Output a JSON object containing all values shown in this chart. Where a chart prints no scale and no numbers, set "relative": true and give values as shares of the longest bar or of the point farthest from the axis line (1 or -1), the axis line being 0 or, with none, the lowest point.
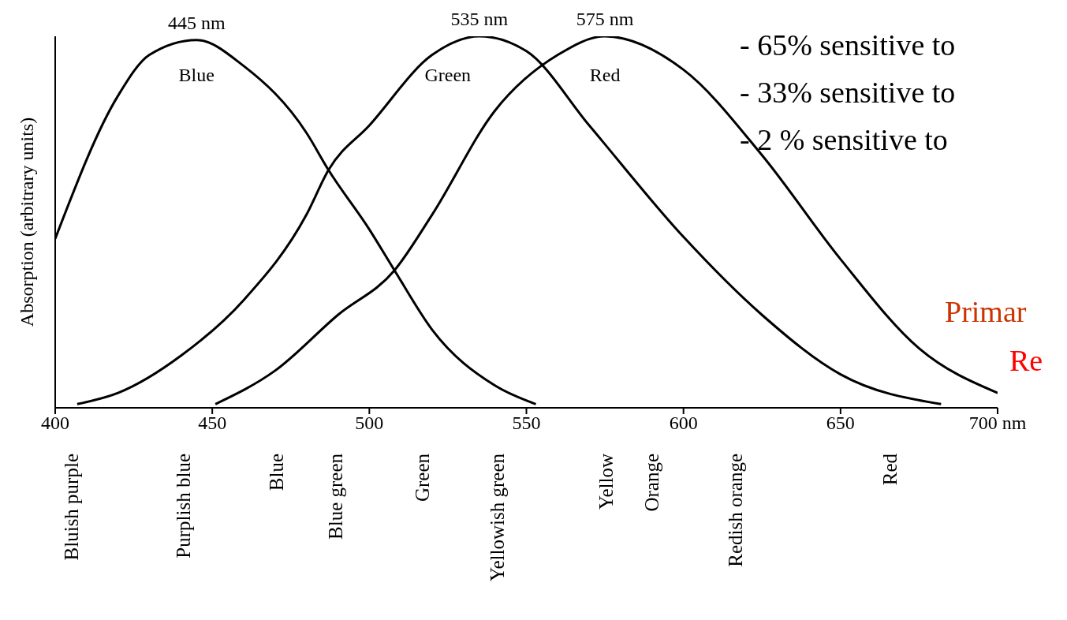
{
  "chart_data": {
    "type": "line",
    "relative": true,
    "ylabel": "Absorption (arbitrary units)",
    "xlim": [
      400,
      700
    ],
    "xticks": [
      400,
      450,
      500,
      550,
      600,
      650,
      {
        "value": 700,
        "label": "700 nm"
      }
    ],
    "series": [
      {
        "name": "Blue",
        "color": "#000000",
        "x": [
          400,
          420,
          430,
          445,
          460,
          480,
          487,
          500,
          508,
          520,
          540,
          553
        ],
        "values": [
          0.455,
          0.84,
          0.95,
          0.99,
          0.92,
          0.74,
          0.64,
          0.48,
          0.37,
          0.21,
          0.06,
          0.01
        ]
      },
      {
        "name": "Green",
        "color": "#000000",
        "x": [
          407,
          420,
          440,
          460,
          480,
          487,
          500,
          520,
          535,
          550,
          570,
          600,
          625,
          650,
          682
        ],
        "values": [
          0.01,
          0.04,
          0.14,
          0.29,
          0.52,
          0.64,
          0.76,
          0.95,
          1,
          0.96,
          0.76,
          0.46,
          0.25,
          0.09,
          0.01
        ]
      },
      {
        "name": "Red",
        "color": "#000000",
        "x": [
          451,
          470,
          490,
          508,
          520,
          540,
          560,
          575,
          600,
          625,
          650,
          675,
          700
        ],
        "values": [
          0.01,
          0.1,
          0.25,
          0.37,
          0.52,
          0.8,
          0.95,
          1,
          0.91,
          0.68,
          0.4,
          0.16,
          0.04
        ]
      }
    ],
    "annotations": [
      {
        "text": "445 nm",
        "x": 445,
        "y": 0.99
      },
      {
        "text": "535 nm",
        "x": 535,
        "y": 1
      },
      {
        "text": "575 nm",
        "x": 575,
        "y": 1
      },
      "Bluish purple",
      "Purplish blue",
      "Blue",
      "Blue green",
      "Green",
      "Yellowish green",
      "Yellow",
      "Orange",
      "Redish orange",
      "Red",
      "- 65% sensitive to",
      "- 33% sensitive to",
      "- 2 % sensitive to",
      "Primar",
      "Re"
    ],
    "grid": false,
    "legend": false,
    "marker": "none",
    "line_style": "solid"
  }
}
